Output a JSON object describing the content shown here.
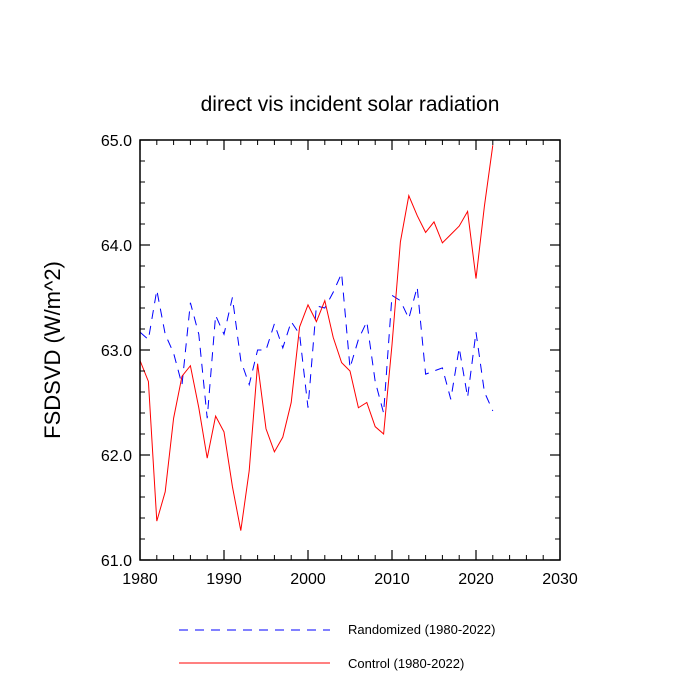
{
  "chart_data": {
    "type": "line",
    "title": "direct vis incident solar radiation",
    "xlabel": "",
    "ylabel": "FSDSVD  (W/m^2)",
    "xlim": [
      1980,
      2030
    ],
    "ylim": [
      61.0,
      65.0
    ],
    "xticks": [
      1980,
      1990,
      2000,
      2010,
      2020,
      2030
    ],
    "xtick_labels": [
      "1980",
      "1990",
      "2000",
      "2010",
      "2020",
      "2030"
    ],
    "yticks": [
      61.0,
      62.0,
      63.0,
      64.0,
      65.0
    ],
    "ytick_labels": [
      "61.0",
      "62.0",
      "63.0",
      "64.0",
      "65.0"
    ],
    "grid": false,
    "legend_position": "bottom",
    "series": [
      {
        "name": "Randomized (1980-2022)",
        "color": "#0000ff",
        "style": "dashed",
        "x": [
          1980,
          1981,
          1982,
          1983,
          1984,
          1985,
          1986,
          1987,
          1988,
          1989,
          1990,
          1991,
          1992,
          1993,
          1994,
          1995,
          1996,
          1997,
          1998,
          1999,
          2000,
          2001,
          2002,
          2003,
          2004,
          2005,
          2006,
          2007,
          2008,
          2009,
          2010,
          2011,
          2012,
          2013,
          2014,
          2015,
          2016,
          2017,
          2018,
          2019,
          2020,
          2021,
          2022
        ],
        "values": [
          63.17,
          63.1,
          63.57,
          63.15,
          62.97,
          62.67,
          63.45,
          63.15,
          62.35,
          63.33,
          63.15,
          63.5,
          62.9,
          62.67,
          63.0,
          63.0,
          63.25,
          63.02,
          63.27,
          63.15,
          62.45,
          63.42,
          63.4,
          63.55,
          63.73,
          62.83,
          63.1,
          63.27,
          62.7,
          62.4,
          63.52,
          63.47,
          63.3,
          63.6,
          62.77,
          62.8,
          62.83,
          62.53,
          63.02,
          62.55,
          63.17,
          62.6,
          62.42
        ]
      },
      {
        "name": "Control (1980-2022)",
        "color": "#ff0000",
        "style": "solid",
        "x": [
          1980,
          1981,
          1982,
          1983,
          1984,
          1985,
          1986,
          1987,
          1988,
          1989,
          1990,
          1991,
          1992,
          1993,
          1994,
          1995,
          1996,
          1997,
          1998,
          1999,
          2000,
          2001,
          2002,
          2003,
          2004,
          2005,
          2006,
          2007,
          2008,
          2009,
          2010,
          2011,
          2012,
          2013,
          2014,
          2015,
          2016,
          2017,
          2018,
          2019,
          2020,
          2021,
          2022
        ],
        "values": [
          62.9,
          62.7,
          61.37,
          61.65,
          62.35,
          62.75,
          62.85,
          62.45,
          61.97,
          62.37,
          62.22,
          61.7,
          61.28,
          61.85,
          62.87,
          62.25,
          62.03,
          62.17,
          62.5,
          63.22,
          63.43,
          63.27,
          63.47,
          63.12,
          62.88,
          62.8,
          62.45,
          62.5,
          62.27,
          62.2,
          63.05,
          64.03,
          64.47,
          64.28,
          64.12,
          64.22,
          64.02,
          64.1,
          64.18,
          64.32,
          63.68,
          64.37,
          64.95
        ]
      }
    ]
  }
}
